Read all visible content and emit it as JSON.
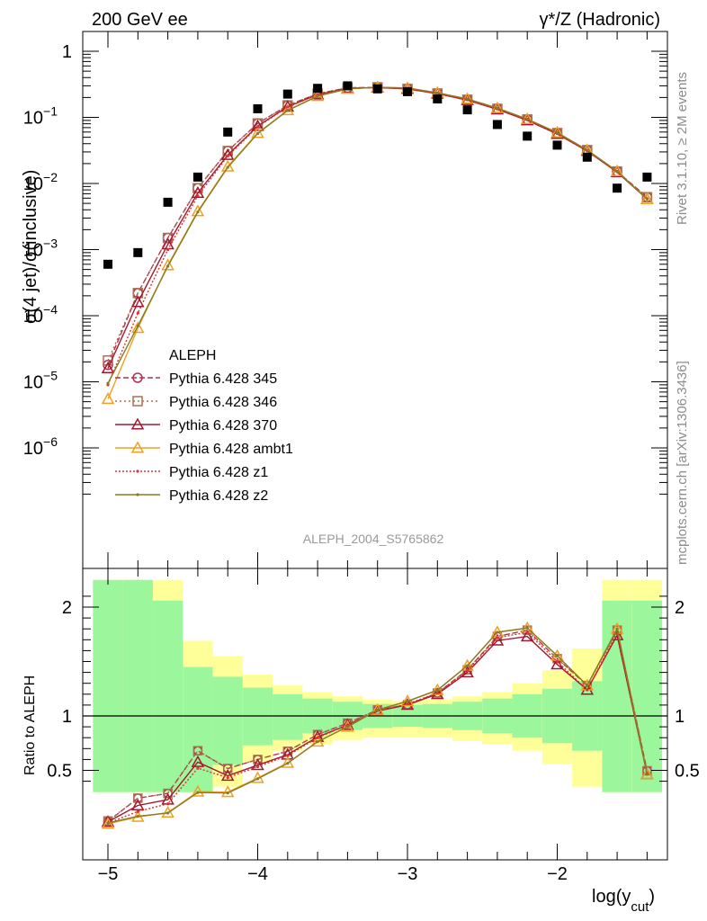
{
  "header": {
    "left": "200 GeV ee",
    "right": "γ*/Z (Hadronic)"
  },
  "side_labels": {
    "rivet": "Rivet 3.1.10, ≥ 2M events",
    "mcplots": "mcplots.cern.ch [arXiv:1306.3436]"
  },
  "analysis_id": "ALEPH_2004_S5765862",
  "axes": {
    "main_ylabel": "σ(4 jet)/σ(inclusive)",
    "ratio_ylabel": "Ratio to ALEPH",
    "xlabel": "log(y",
    "xlabel_sub": "cut",
    "xlabel_close": ")",
    "main_yticks": [
      "10",
      "1",
      "10",
      "10",
      "10",
      "10",
      "10",
      "10"
    ],
    "main_ytick_exps": [
      "",
      "",
      "−1",
      "−2",
      "−3",
      "−4",
      "−5",
      "−6"
    ],
    "ratio_yticks": [
      "2",
      "1",
      "0.5"
    ],
    "xticks": [
      "−5",
      "−4",
      "−3",
      "−2"
    ]
  },
  "legend": [
    {
      "label": "ALEPH"
    },
    {
      "label": "Pythia 6.428 345"
    },
    {
      "label": "Pythia 6.428 346"
    },
    {
      "label": "Pythia 6.428 370"
    },
    {
      "label": "Pythia 6.428 ambt1"
    },
    {
      "label": "Pythia 6.428 z1"
    },
    {
      "label": "Pythia 6.428 z2"
    }
  ],
  "chart_data": {
    "type": "line",
    "x": [
      -5.0,
      -4.8,
      -4.6,
      -4.4,
      -4.2,
      -4.0,
      -3.8,
      -3.6,
      -3.4,
      -3.2,
      -3.0,
      -2.8,
      -2.6,
      -2.4,
      -2.2,
      -2.0,
      -1.8,
      -1.6,
      -1.4
    ],
    "xlim": [
      -5.2,
      -1.3
    ],
    "ylim_main": [
      1.5e-07,
      25
    ],
    "ylim_ratio": [
      0.35,
      2.25
    ],
    "xlabel": "log(y_cut)",
    "ylabel": "σ(4 jet)/σ(inclusive)",
    "ratio_ylabel": "Ratio to ALEPH",
    "data": {
      "name": "ALEPH",
      "values": [
        0.0006,
        0.0009,
        0.0052,
        0.0125,
        0.06,
        0.135,
        0.225,
        0.275,
        0.3,
        0.27,
        0.245,
        0.19,
        0.13,
        0.078,
        0.052,
        0.038,
        0.025,
        0.0085,
        0.0125
      ]
    },
    "series": [
      {
        "name": "Pythia 6.428 345",
        "color": "#b03050",
        "marker": "circle",
        "dash": "6,3",
        "values": [
          1.8e-05,
          0.00022,
          0.0015,
          0.0085,
          0.031,
          0.081,
          0.152,
          0.228,
          0.28,
          0.285,
          0.27,
          0.23,
          0.185,
          0.135,
          0.093,
          0.058,
          0.032,
          0.0152,
          0.0062
        ]
      },
      {
        "name": "Pythia 6.428 346",
        "color": "#a87050",
        "marker": "square",
        "dash": "2,3",
        "values": [
          2.1e-05,
          0.00022,
          0.0015,
          0.0085,
          0.031,
          0.081,
          0.152,
          0.228,
          0.28,
          0.285,
          0.27,
          0.23,
          0.185,
          0.135,
          0.093,
          0.058,
          0.032,
          0.0152,
          0.0062
        ]
      },
      {
        "name": "Pythia 6.428 370",
        "color": "#a01830",
        "marker": "triangle",
        "dash": "",
        "values": [
          1.6e-05,
          0.00016,
          0.0012,
          0.0072,
          0.027,
          0.074,
          0.145,
          0.222,
          0.275,
          0.282,
          0.27,
          0.228,
          0.182,
          0.132,
          0.09,
          0.056,
          0.031,
          0.0148,
          0.0058
        ]
      },
      {
        "name": "Pythia 6.428 ambt1",
        "color": "#f0a020",
        "marker": "triangle",
        "dash": "",
        "values": [
          5.5e-06,
          6.5e-05,
          0.00058,
          0.0038,
          0.018,
          0.058,
          0.128,
          0.21,
          0.27,
          0.285,
          0.278,
          0.235,
          0.19,
          0.138,
          0.094,
          0.059,
          0.032,
          0.0153,
          0.0058
        ]
      },
      {
        "name": "Pythia 6.428 z1",
        "color": "#e03030",
        "marker": "dot",
        "dash": "2,2",
        "values": [
          9e-06,
          0.00011,
          0.001,
          0.0065,
          0.026,
          0.072,
          0.143,
          0.22,
          0.275,
          0.283,
          0.272,
          0.23,
          0.184,
          0.134,
          0.092,
          0.057,
          0.031,
          0.015,
          0.0059
        ]
      },
      {
        "name": "Pythia 6.428 z2",
        "color": "#8a7a20",
        "marker": "dot",
        "dash": "",
        "values": [
          9.5e-06,
          7e-05,
          0.00056,
          0.0037,
          0.0175,
          0.057,
          0.127,
          0.21,
          0.27,
          0.285,
          0.278,
          0.235,
          0.19,
          0.138,
          0.094,
          0.059,
          0.032,
          0.0153,
          0.0058
        ]
      }
    ],
    "ratio_bands": {
      "edges": [
        -5.1,
        -4.9,
        -4.7,
        -4.5,
        -4.3,
        -4.1,
        -3.9,
        -3.7,
        -3.5,
        -3.3,
        -3.1,
        -2.9,
        -2.7,
        -2.5,
        -2.3,
        -2.1,
        -1.9,
        -1.7,
        -1.5,
        -1.3
      ],
      "stat_lo": [
        0.3,
        0.3,
        0.3,
        0.3,
        0.55,
        0.73,
        0.78,
        0.84,
        0.87,
        0.89,
        0.9,
        0.89,
        0.87,
        0.84,
        0.8,
        0.75,
        0.68,
        0.3,
        0.3
      ],
      "stat_hi": [
        2.25,
        2.25,
        2.06,
        1.45,
        1.36,
        1.26,
        1.2,
        1.16,
        1.13,
        1.11,
        1.1,
        1.11,
        1.13,
        1.16,
        1.2,
        1.25,
        1.32,
        2.06,
        2.06
      ],
      "tot_lo": [
        0.3,
        0.3,
        0.3,
        0.3,
        0.35,
        0.57,
        0.68,
        0.74,
        0.78,
        0.8,
        0.8,
        0.8,
        0.77,
        0.74,
        0.68,
        0.56,
        0.35,
        0.3,
        0.3
      ],
      "tot_hi": [
        2.25,
        2.25,
        2.25,
        1.69,
        1.55,
        1.38,
        1.28,
        1.22,
        1.18,
        1.15,
        1.14,
        1.15,
        1.18,
        1.22,
        1.3,
        1.42,
        1.62,
        2.25,
        2.25
      ],
      "stat_color": "#9cf79c",
      "total_color": "#ffff99"
    },
    "grid": false,
    "legend_position": "lower-left"
  }
}
